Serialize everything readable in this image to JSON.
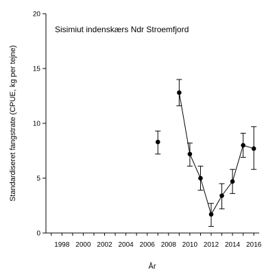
{
  "chart_data": {
    "type": "line",
    "title": "Sisimiut indenskærs Ndr Stroemfjord",
    "xlabel": "År",
    "ylabel": "Standardiseret fangstrate (CPUE, kg per tejne)",
    "xlim": [
      1996.5,
      2016.5
    ],
    "ylim": [
      0,
      20
    ],
    "xticks": [
      1998,
      2000,
      2002,
      2004,
      2006,
      2008,
      2010,
      2012,
      2014,
      2016
    ],
    "yticks": [
      0,
      5,
      10,
      15,
      20
    ],
    "grid": false,
    "series": [
      {
        "x": [
          2007
        ],
        "y": [
          8.3
        ],
        "err_low": [
          7.2
        ],
        "err_high": [
          9.3
        ],
        "connected": false
      },
      {
        "x": [
          2009,
          2010,
          2011,
          2012,
          2013,
          2014,
          2015,
          2016
        ],
        "y": [
          12.8,
          7.2,
          5.0,
          1.7,
          3.4,
          4.7,
          8.0,
          7.7
        ],
        "err_low": [
          11.6,
          6.1,
          3.9,
          0.6,
          2.2,
          3.6,
          6.9,
          5.8
        ],
        "err_high": [
          14.0,
          8.2,
          6.1,
          2.7,
          4.5,
          5.8,
          9.1,
          9.7
        ],
        "connected": true
      }
    ]
  }
}
